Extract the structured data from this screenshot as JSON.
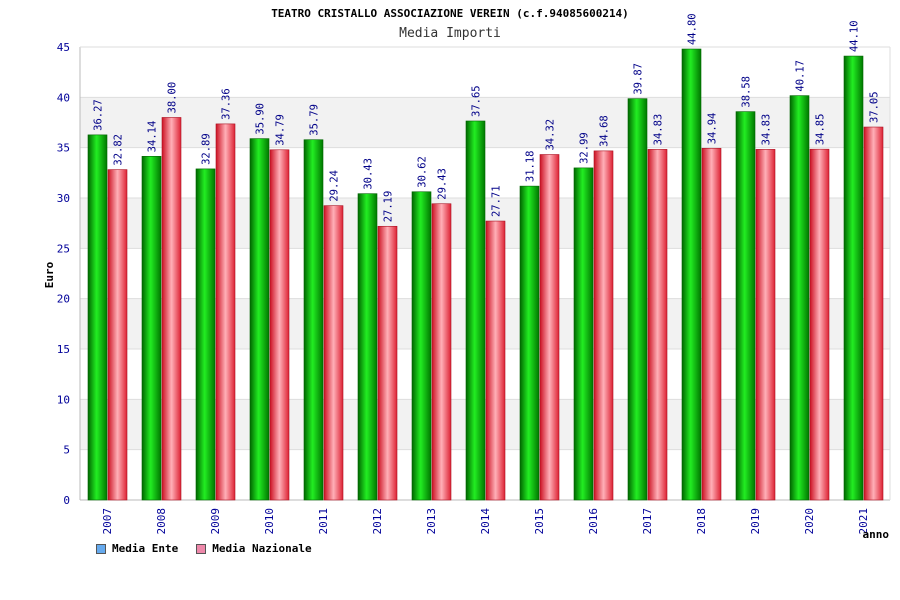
{
  "chart_data": {
    "type": "bar",
    "title": "TEATRO CRISTALLO ASSOCIAZIONE VEREIN (c.f.94085600214)",
    "subtitle": "Media Importi",
    "xlabel": "anno",
    "ylabel": "Euro",
    "ylim": [
      0,
      45
    ],
    "yticks": [
      0,
      5,
      10,
      15,
      20,
      25,
      30,
      35,
      40,
      45
    ],
    "categories": [
      "2007",
      "2008",
      "2009",
      "2010",
      "2011",
      "2012",
      "2013",
      "2014",
      "2015",
      "2016",
      "2017",
      "2018",
      "2019",
      "2020",
      "2021"
    ],
    "series": [
      {
        "name": "Media Ente",
        "color": "#00cc00",
        "values": [
          36.27,
          34.14,
          32.89,
          35.9,
          35.79,
          30.43,
          30.62,
          37.65,
          31.18,
          32.99,
          39.87,
          44.8,
          38.58,
          40.17,
          44.1
        ]
      },
      {
        "name": "Media Nazionale",
        "color": "#ee3344",
        "values": [
          32.82,
          38.0,
          37.36,
          34.79,
          29.24,
          27.19,
          29.43,
          27.71,
          34.32,
          34.68,
          34.83,
          34.94,
          34.83,
          34.85,
          37.05
        ]
      }
    ],
    "value_labels": {
      "Media Ente": [
        "36.27",
        "34.14",
        "32.89",
        "35.90",
        "35.79",
        "30.43",
        "30.62",
        "37.65",
        "31.18",
        "32.99",
        "39.87",
        "44.80",
        "38.58",
        "40.17",
        "44.10"
      ],
      "Media Nazionale": [
        "32.82",
        "38.00",
        "37.36",
        "34.79",
        "29.24",
        "27.19",
        "29.43",
        "27.71",
        "34.32",
        "34.68",
        "34.83",
        "34.94",
        "34.83",
        "34.85",
        "37.05"
      ]
    },
    "grid": true
  },
  "legend": {
    "items": [
      {
        "label": "Media Ente",
        "color": "#66aaee"
      },
      {
        "label": "Media Nazionale",
        "color": "#ee88aa"
      }
    ]
  }
}
